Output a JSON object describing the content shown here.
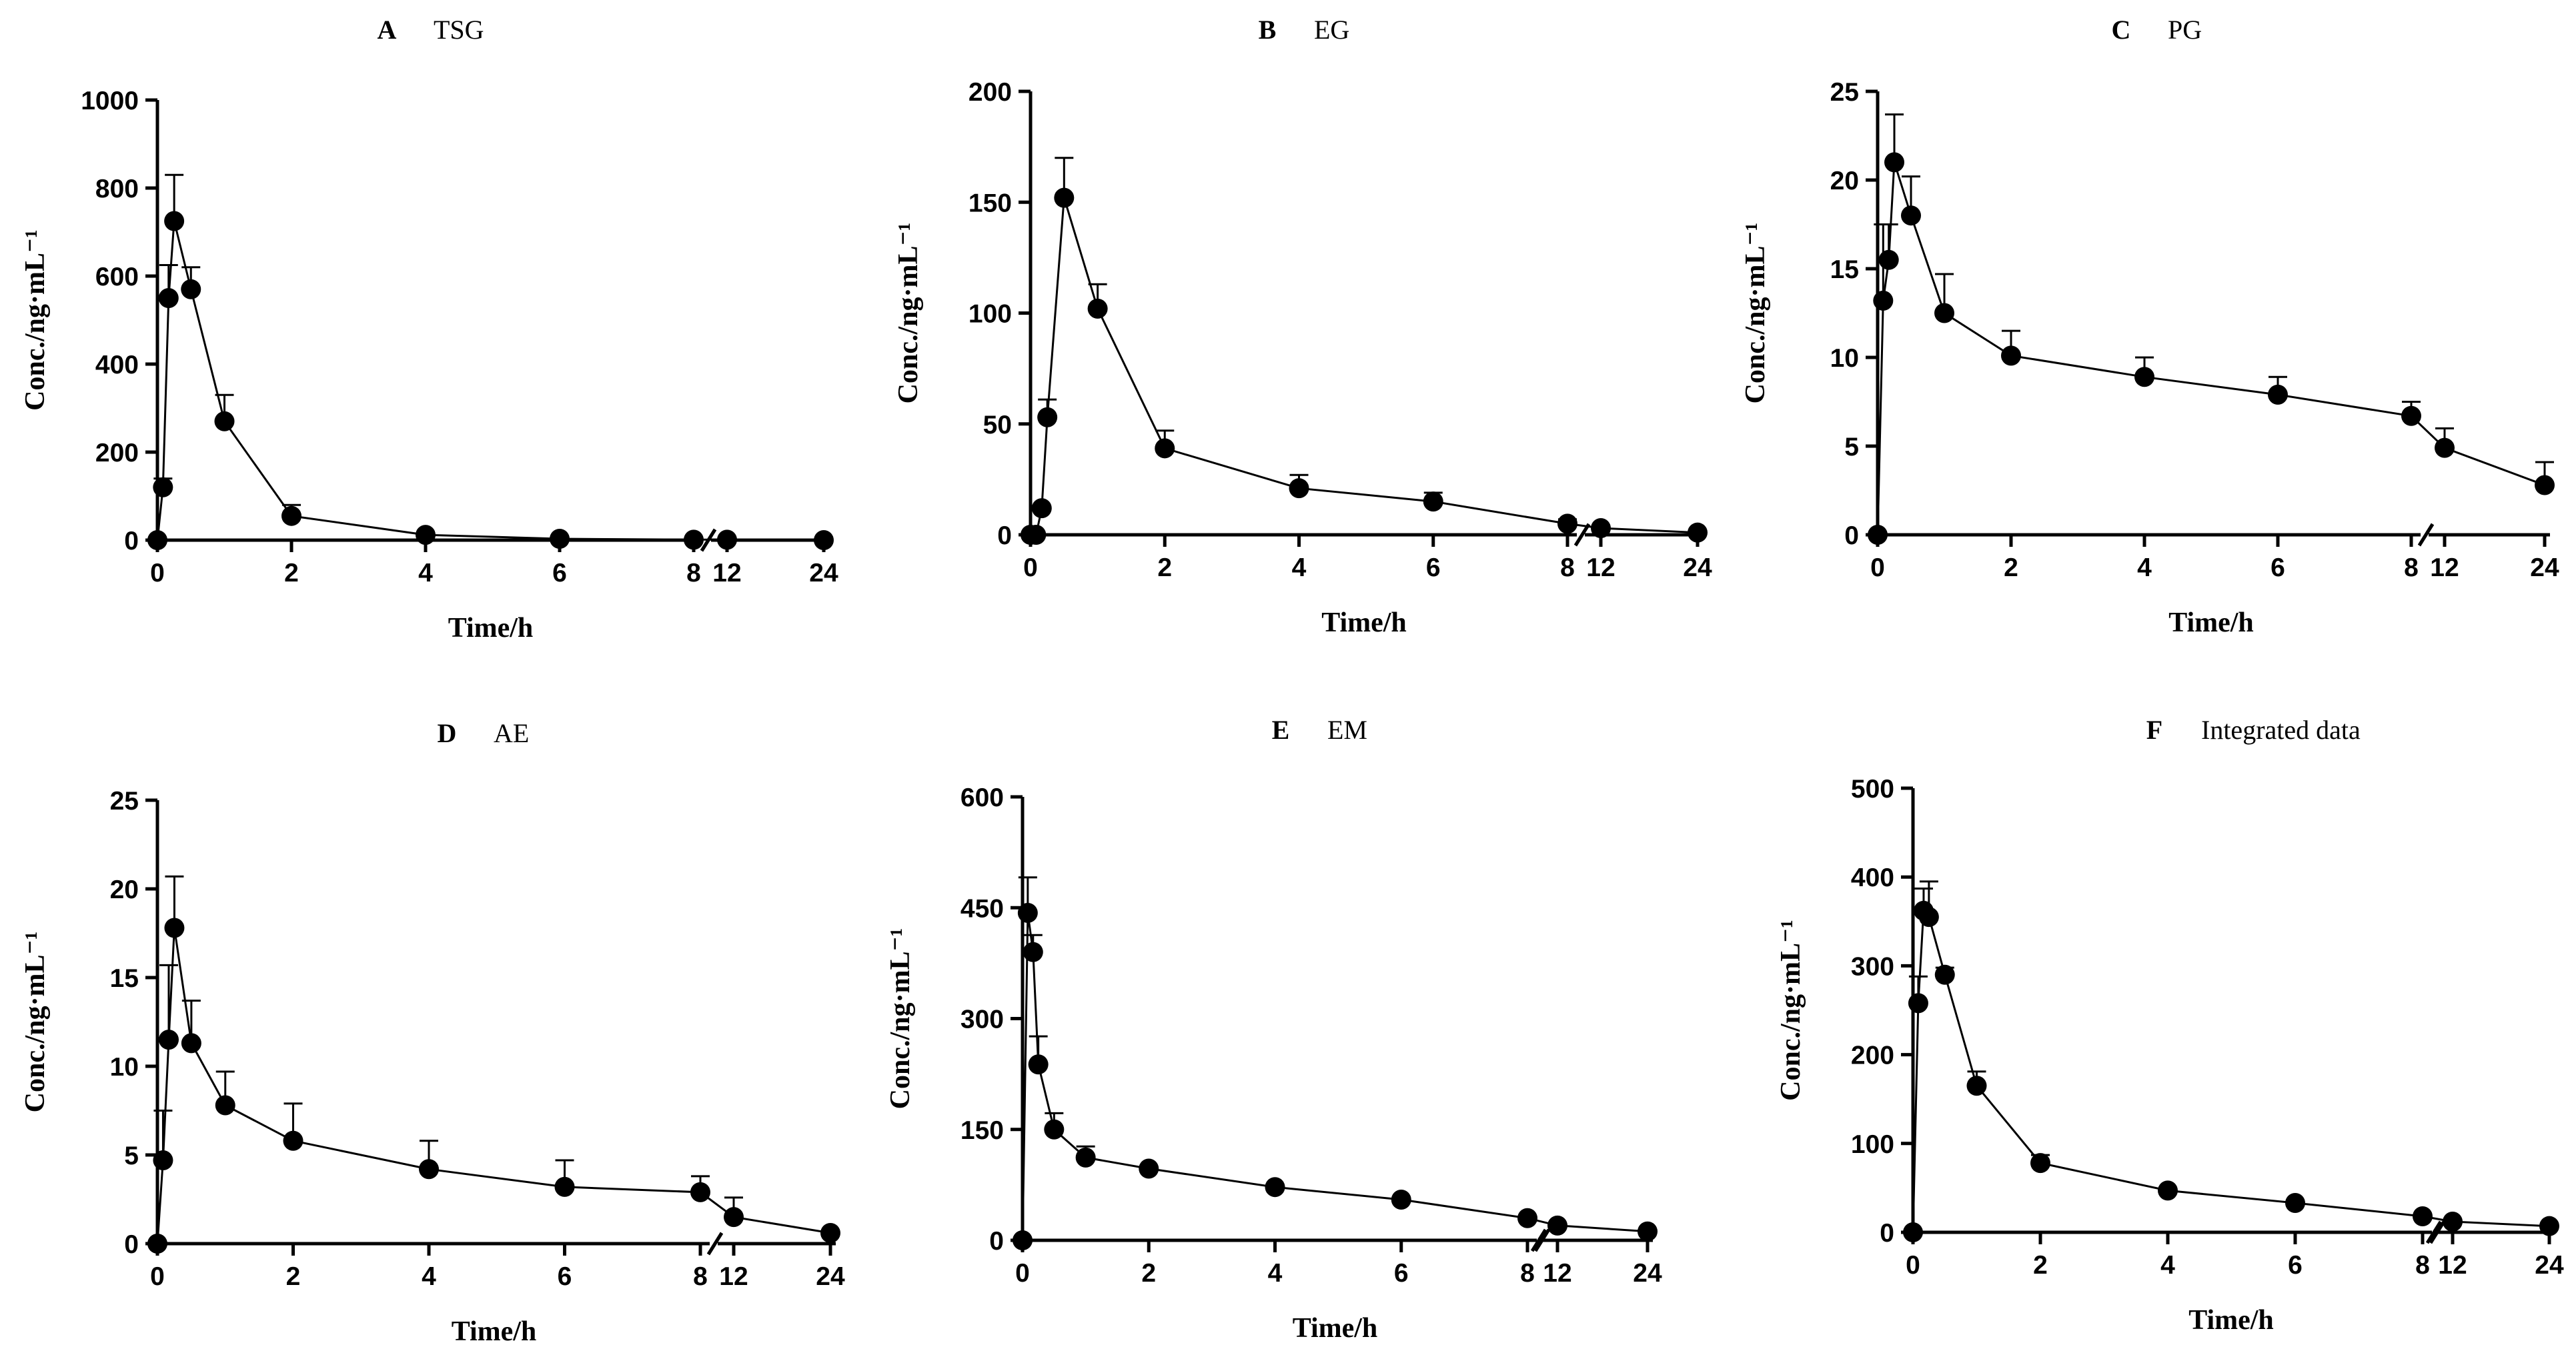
{
  "figure": {
    "background": "#ffffff",
    "ink": "#000000"
  },
  "chart_data": [
    {
      "type": "line",
      "panel_label": "A",
      "title": "TSG",
      "xlabel": "Time/h",
      "ylabel": "Conc./ng·mL⁻¹",
      "x_segments": [
        {
          "range": [
            0,
            8
          ],
          "ticks": [
            0,
            2,
            4,
            6,
            8
          ]
        },
        {
          "ticks": [
            12,
            24
          ]
        }
      ],
      "ylim": [
        0,
        1000
      ],
      "yticks": [
        0,
        200,
        400,
        600,
        800,
        1000
      ],
      "x": [
        0,
        0.083,
        0.167,
        0.25,
        0.5,
        1,
        2,
        4,
        6,
        8,
        12,
        24
      ],
      "values": [
        0,
        120,
        550,
        725,
        570,
        270,
        55,
        12,
        3,
        1,
        1,
        0
      ],
      "errors": [
        0,
        20,
        75,
        105,
        50,
        60,
        25,
        4,
        1,
        0,
        0,
        0
      ]
    },
    {
      "type": "line",
      "panel_label": "B",
      "title": "EG",
      "xlabel": "Time/h",
      "ylabel": "Conc./ng·mL⁻¹",
      "x_segments": [
        {
          "range": [
            0,
            8
          ],
          "ticks": [
            0,
            2,
            4,
            6,
            8
          ]
        },
        {
          "ticks": [
            12,
            24
          ]
        }
      ],
      "ylim": [
        0,
        200
      ],
      "yticks": [
        0,
        50,
        100,
        150,
        200
      ],
      "x": [
        0,
        0.083,
        0.167,
        0.25,
        0.5,
        1,
        2,
        4,
        6,
        8,
        12,
        24
      ],
      "values": [
        0,
        0,
        12,
        53,
        152,
        102,
        39,
        21,
        15,
        5,
        3,
        1
      ],
      "errors": [
        0,
        0,
        0,
        8,
        18,
        11,
        8,
        6,
        4,
        2,
        0,
        0
      ]
    },
    {
      "type": "line",
      "panel_label": "C",
      "title": "PG",
      "xlabel": "Time/h",
      "ylabel": "Conc./ng·mL⁻¹",
      "x_segments": [
        {
          "range": [
            0,
            8
          ],
          "ticks": [
            0,
            2,
            4,
            6,
            8
          ]
        },
        {
          "ticks": [
            12,
            24
          ]
        }
      ],
      "ylim": [
        0,
        25
      ],
      "yticks": [
        0,
        5,
        10,
        15,
        20,
        25
      ],
      "x": [
        0,
        0.083,
        0.167,
        0.25,
        0.5,
        1,
        2,
        4,
        6,
        8,
        12,
        24
      ],
      "values": [
        0,
        13.2,
        15.5,
        21,
        18,
        12.5,
        10.1,
        8.9,
        7.9,
        6.7,
        4.9,
        2.8
      ],
      "errors": [
        0,
        4.3,
        2,
        2.7,
        2.2,
        2.2,
        1.4,
        1.1,
        1,
        0.8,
        1.1,
        1.3
      ]
    },
    {
      "type": "line",
      "panel_label": "D",
      "title": "AE",
      "xlabel": "Time/h",
      "ylabel": "Conc./ng·mL⁻¹",
      "x_segments": [
        {
          "range": [
            0,
            8
          ],
          "ticks": [
            0,
            2,
            4,
            6,
            8
          ]
        },
        {
          "ticks": [
            12,
            24
          ]
        }
      ],
      "ylim": [
        0,
        25
      ],
      "yticks": [
        0,
        5,
        10,
        15,
        20,
        25
      ],
      "x": [
        0,
        0.083,
        0.167,
        0.25,
        0.5,
        1,
        2,
        4,
        6,
        8,
        12,
        24
      ],
      "values": [
        0,
        4.7,
        11.5,
        17.8,
        11.3,
        7.8,
        5.8,
        4.2,
        3.2,
        2.9,
        1.5,
        0.6
      ],
      "errors": [
        0,
        2.8,
        4.2,
        2.9,
        2.4,
        1.9,
        2.1,
        1.6,
        1.5,
        0.9,
        1.1,
        0
      ]
    },
    {
      "type": "line",
      "panel_label": "E",
      "title": "EM",
      "xlabel": "Time/h",
      "ylabel": "Conc./ng·mL⁻¹",
      "x_segments": [
        {
          "range": [
            0,
            8
          ],
          "ticks": [
            0,
            2,
            4,
            6,
            8
          ]
        },
        {
          "ticks": [
            12,
            24
          ]
        }
      ],
      "ylim": [
        0,
        600
      ],
      "yticks": [
        0,
        150,
        300,
        450,
        600
      ],
      "x": [
        0,
        0.083,
        0.167,
        0.25,
        0.5,
        1,
        2,
        4,
        6,
        8,
        12,
        24
      ],
      "values": [
        0,
        443,
        390,
        238,
        150,
        112,
        97,
        72,
        55,
        30,
        20,
        12
      ],
      "errors": [
        0,
        48,
        23,
        38,
        22,
        15,
        0,
        0,
        0,
        0,
        0,
        0
      ]
    },
    {
      "type": "line",
      "panel_label": "F",
      "title": "Integrated data",
      "xlabel": "Time/h",
      "ylabel": "Conc./ng·mL⁻¹",
      "x_segments": [
        {
          "range": [
            0,
            8
          ],
          "ticks": [
            0,
            2,
            4,
            6,
            8
          ]
        },
        {
          "ticks": [
            12,
            24
          ]
        }
      ],
      "ylim": [
        0,
        500
      ],
      "yticks": [
        0,
        100,
        200,
        300,
        400,
        500
      ],
      "x": [
        0,
        0.083,
        0.167,
        0.25,
        0.5,
        1,
        2,
        4,
        6,
        8,
        12,
        24
      ],
      "values": [
        0,
        258,
        362,
        355,
        290,
        165,
        78,
        47,
        33,
        18,
        12,
        7
      ],
      "errors": [
        0,
        30,
        25,
        40,
        8,
        16,
        9,
        0,
        0,
        0,
        0,
        0
      ]
    }
  ]
}
